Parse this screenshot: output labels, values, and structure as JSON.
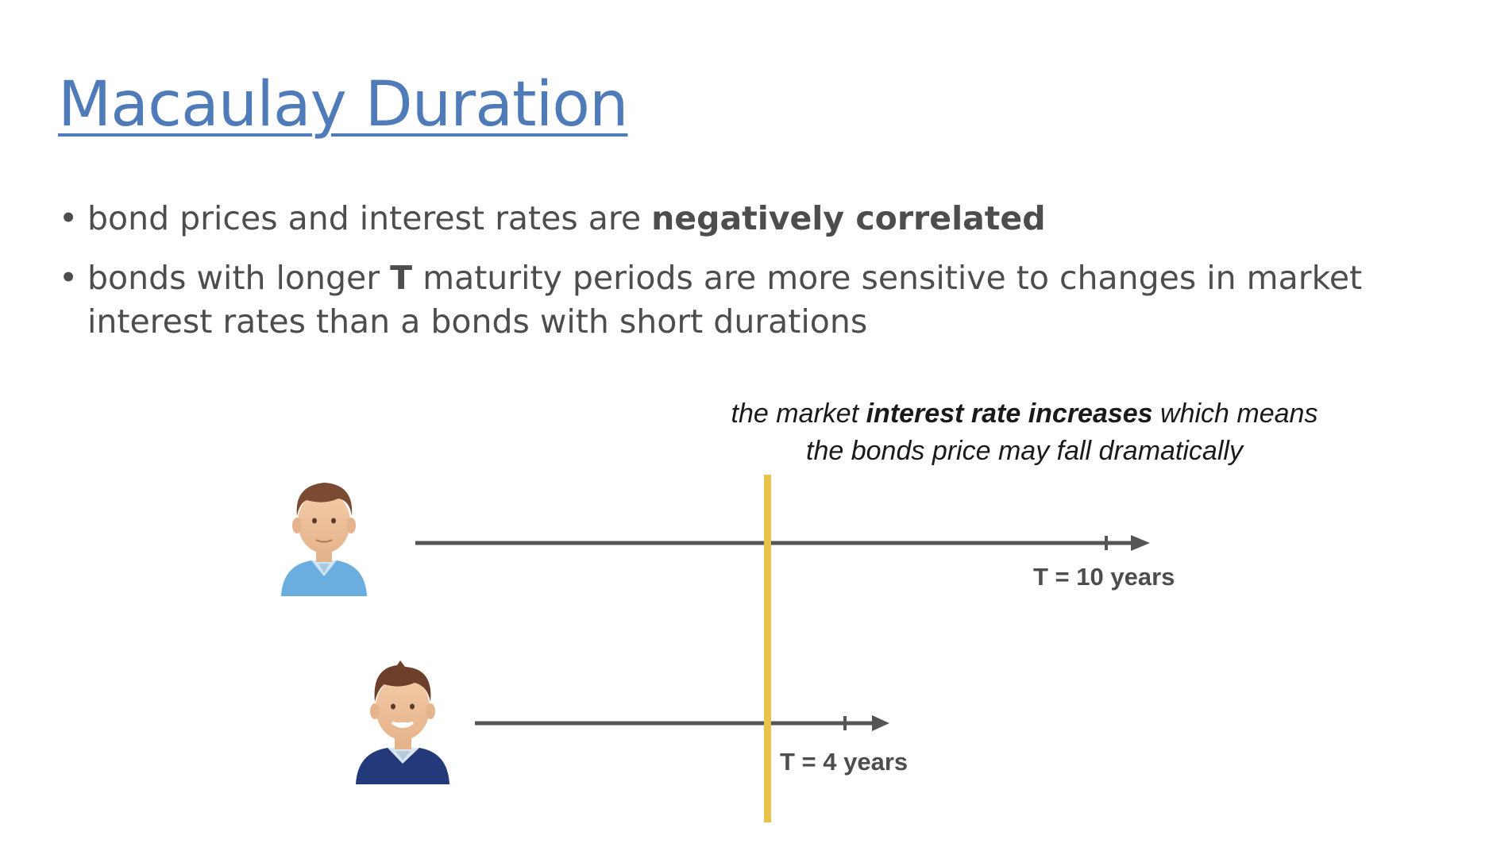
{
  "title": "Macaulay Duration",
  "bullets": [
    {
      "parts": [
        {
          "text": "bond prices and interest rates are ",
          "bold": false
        },
        {
          "text": "negatively correlated",
          "bold": true
        }
      ]
    },
    {
      "parts": [
        {
          "text": "bonds with longer ",
          "bold": false
        },
        {
          "text": "T",
          "bold": true
        },
        {
          "text": " maturity periods are more sensitive to changes in market interest rates than a bonds with short durations",
          "bold": false
        }
      ]
    }
  ],
  "annotation": {
    "line1_pre": "the market ",
    "line1_bold": "interest rate increases",
    "line1_post": " which means",
    "line2": "the bonds price may fall dramatically"
  },
  "timelines": [
    {
      "label": "T = 10 years",
      "maturity_years": 10,
      "person": "man-light-sweater-icon"
    },
    {
      "label": "T = 4 years",
      "maturity_years": 4,
      "person": "man-dark-sweater-icon"
    }
  ],
  "colors": {
    "title": "#4f7bb8",
    "text": "#4d4d4d",
    "axis": "#555555",
    "rate_line": "#e8c24a",
    "sweater_light": "#6aaedf",
    "sweater_dark": "#24397a",
    "skin": "#f0c6a0",
    "hair": "#7a4a32"
  }
}
